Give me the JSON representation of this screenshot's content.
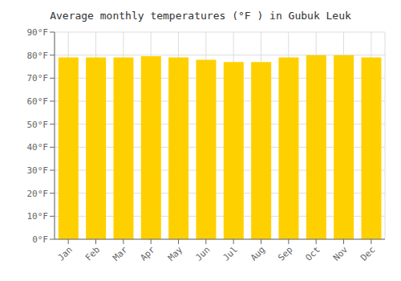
{
  "chart_data": {
    "type": "bar",
    "title": "Average monthly temperatures (°F ) in Gubuk Leuk",
    "categories": [
      "Jan",
      "Feb",
      "Mar",
      "Apr",
      "May",
      "Jun",
      "Jul",
      "Aug",
      "Sep",
      "Oct",
      "Nov",
      "Dec"
    ],
    "values": [
      79.0,
      79.0,
      79.0,
      79.5,
      79.0,
      78.0,
      77.0,
      77.0,
      79.0,
      80.0,
      80.0,
      79.0
    ],
    "color": "#FFD000",
    "ylim": [
      0,
      90
    ],
    "yticks": [
      {
        "value": 0,
        "label": "0°F"
      },
      {
        "value": 10,
        "label": "10°F"
      },
      {
        "value": 20,
        "label": "20°F"
      },
      {
        "value": 30,
        "label": "30°F"
      },
      {
        "value": 40,
        "label": "40°F"
      },
      {
        "value": 50,
        "label": "50°F"
      },
      {
        "value": 60,
        "label": "60°F"
      },
      {
        "value": 70,
        "label": "70°F"
      },
      {
        "value": 80,
        "label": "80°F"
      },
      {
        "value": 90,
        "label": "90°F"
      }
    ],
    "grid": true
  }
}
